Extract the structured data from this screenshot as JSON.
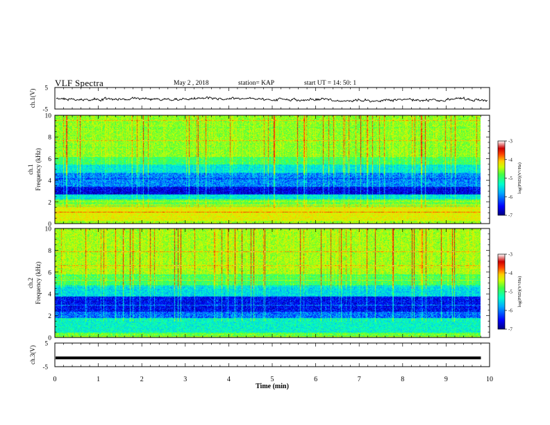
{
  "header": {
    "title": "VLF Spectra",
    "date": "May 2 , 2018",
    "station": "station= KAP",
    "start": "start UT = 14: 50: 1"
  },
  "chart_data": [
    {
      "type": "line",
      "id": "waveform-ch1",
      "ylabel": "ch.1(V)",
      "ylim": [
        -5,
        5
      ],
      "yticks": [
        5,
        -5
      ],
      "xlim": [
        0,
        10
      ],
      "description_series": "noisy waveform around -0.5 V",
      "series": [
        {
          "values_approx_mean": -0.5,
          "amplitude_approx": 1.0
        }
      ]
    },
    {
      "type": "heatmap",
      "id": "spectrogram-ch1",
      "ylabel": "ch.1\nFrequency (kHz)",
      "ylabel_line1": "ch.1",
      "ylabel_line2": "Frequency (kHz)",
      "ylim": [
        0,
        10
      ],
      "yticks": [
        0,
        2,
        4,
        6,
        8,
        10
      ],
      "xlim": [
        0,
        9.8
      ],
      "colorbar": {
        "label": "log(PSD)(V²/Hz)",
        "range": [
          -7,
          -3
        ],
        "ticks": [
          -3,
          -4,
          -5,
          -6,
          -7
        ]
      }
    },
    {
      "type": "heatmap",
      "id": "spectrogram-ch2",
      "ylabel_line1": "ch.2",
      "ylabel_line2": "Frequency (kHz)",
      "ylim": [
        0,
        10
      ],
      "yticks": [
        0,
        2,
        4,
        6,
        8,
        10
      ],
      "xlim": [
        0,
        9.8
      ],
      "colorbar": {
        "label": "log(PSD)(V²/Hz)",
        "range": [
          -7,
          -3
        ],
        "ticks": [
          -3,
          -4,
          -5,
          -6,
          -7
        ]
      }
    },
    {
      "type": "line",
      "id": "waveform-ch3",
      "ylabel": "ch.3(V)",
      "ylim": [
        -5,
        5
      ],
      "yticks": [
        5,
        -5
      ],
      "xlim": [
        0,
        9.8
      ],
      "series": [
        {
          "constant_value": -1.3
        }
      ]
    }
  ],
  "xaxis": {
    "label": "Time (min)",
    "ticks": [
      "0",
      "1",
      "2",
      "3",
      "4",
      "5",
      "6",
      "7",
      "8",
      "9",
      "10"
    ],
    "range": [
      0,
      10
    ]
  },
  "colors": {
    "colormap": [
      "#000080",
      "#0000ff",
      "#00aaff",
      "#00ffcc",
      "#44ff44",
      "#ccff00",
      "#ffcc00",
      "#ff4400",
      "#cc0000",
      "#ffffff"
    ]
  }
}
